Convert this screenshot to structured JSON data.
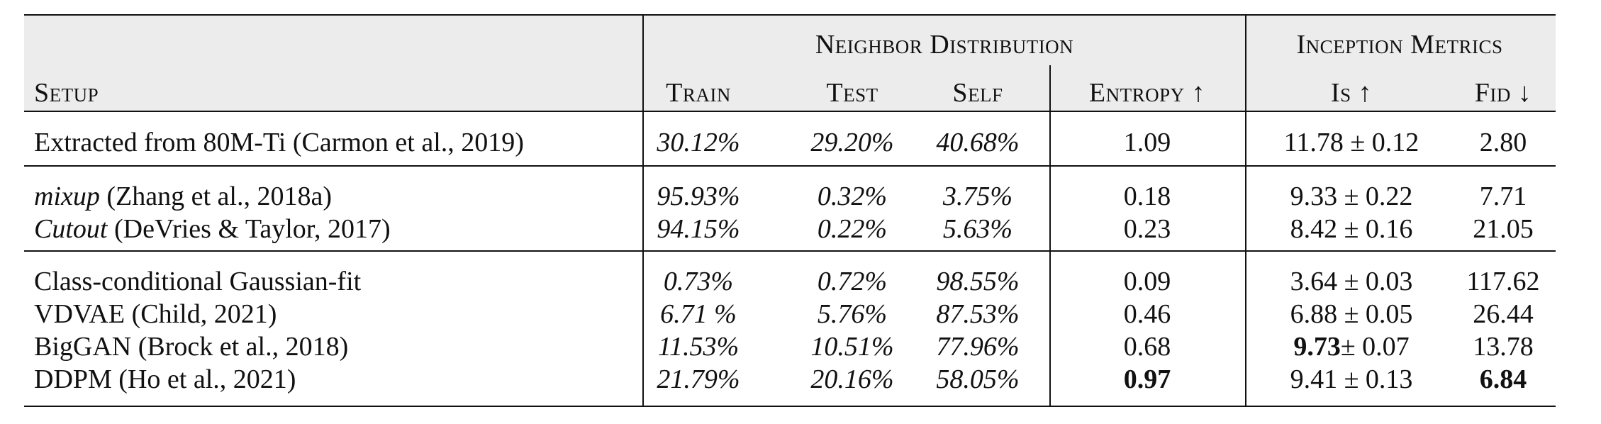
{
  "header": {
    "group_neighbor": "Neighbor Distribution",
    "group_inception": "Inception Metrics",
    "setup": "Setup",
    "train": "Train",
    "test": "Test",
    "self": "Self",
    "entropy": "Entropy ↑",
    "is": "Is ↑",
    "fid": "Fid ↓"
  },
  "rows": [
    {
      "setup_pre": "",
      "setup_em": "",
      "setup_rest": "Extracted from 80M-Ti (Carmon et al., 2019)",
      "train": "30.12%",
      "test": "29.20%",
      "self": "40.68%",
      "entropy": "1.09",
      "is_val": "11.78",
      "is_err": "± 0.12",
      "fid": "2.80"
    },
    {
      "setup_em": "mixup",
      "setup_rest": " (Zhang et al., 2018a)",
      "train": "95.93%",
      "test": "0.32%",
      "self": "3.75%",
      "entropy": "0.18",
      "is_val": "9.33",
      "is_err": "± 0.22",
      "fid": "7.71"
    },
    {
      "setup_em": "Cutout",
      "setup_rest": " (DeVries & Taylor, 2017)",
      "train": "94.15%",
      "test": "0.22%",
      "self": "5.63%",
      "entropy": "0.23",
      "is_val": "8.42",
      "is_err": "± 0.16",
      "fid": "21.05"
    },
    {
      "setup_em": "",
      "setup_rest": "Class-conditional Gaussian-fit",
      "train": "0.73%",
      "test": "0.72%",
      "self": "98.55%",
      "entropy": "0.09",
      "is_val": "3.64",
      "is_err": "± 0.03",
      "fid": "117.62"
    },
    {
      "setup_em": "",
      "setup_rest": "VDVAE (Child, 2021)",
      "train": "6.71 %",
      "test": "5.76%",
      "self": "87.53%",
      "entropy": "0.46",
      "is_val": "6.88",
      "is_err": "± 0.05",
      "fid": "26.44"
    },
    {
      "setup_em": "",
      "setup_rest": "BigGAN (Brock et al., 2018)",
      "train": "11.53%",
      "test": "10.51%",
      "self": "77.96%",
      "entropy": "0.68",
      "is_val": "9.73",
      "is_err": "± 0.07",
      "fid": "13.78"
    },
    {
      "setup_em": "",
      "setup_rest": "DDPM (Ho et al., 2021)",
      "train": "21.79%",
      "test": "20.16%",
      "self": "58.05%",
      "entropy": "0.97",
      "is_val": "9.41",
      "is_err": "± 0.13",
      "fid": "6.84"
    }
  ]
}
